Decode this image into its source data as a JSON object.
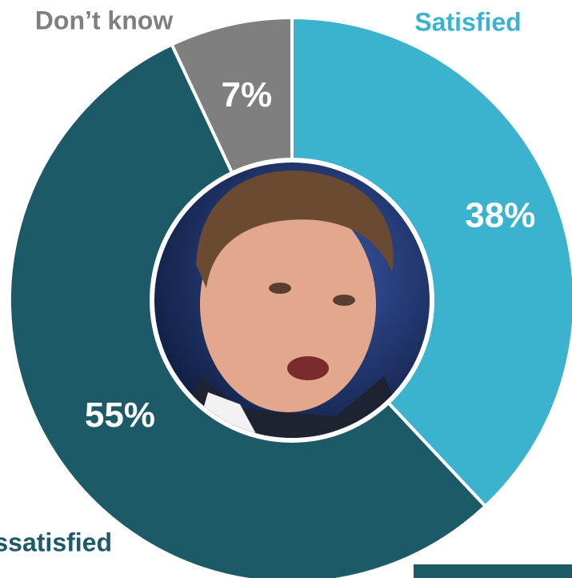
{
  "chart_data": {
    "type": "donut",
    "categories": [
      "Satisfied",
      "Dissatisfied",
      "Don’t know"
    ],
    "values": [
      38,
      55,
      7
    ],
    "value_labels": [
      "38%",
      "55%",
      "7%"
    ],
    "colors": [
      "#3bb3cf",
      "#1c5a68",
      "#7f7f7f"
    ]
  }
}
